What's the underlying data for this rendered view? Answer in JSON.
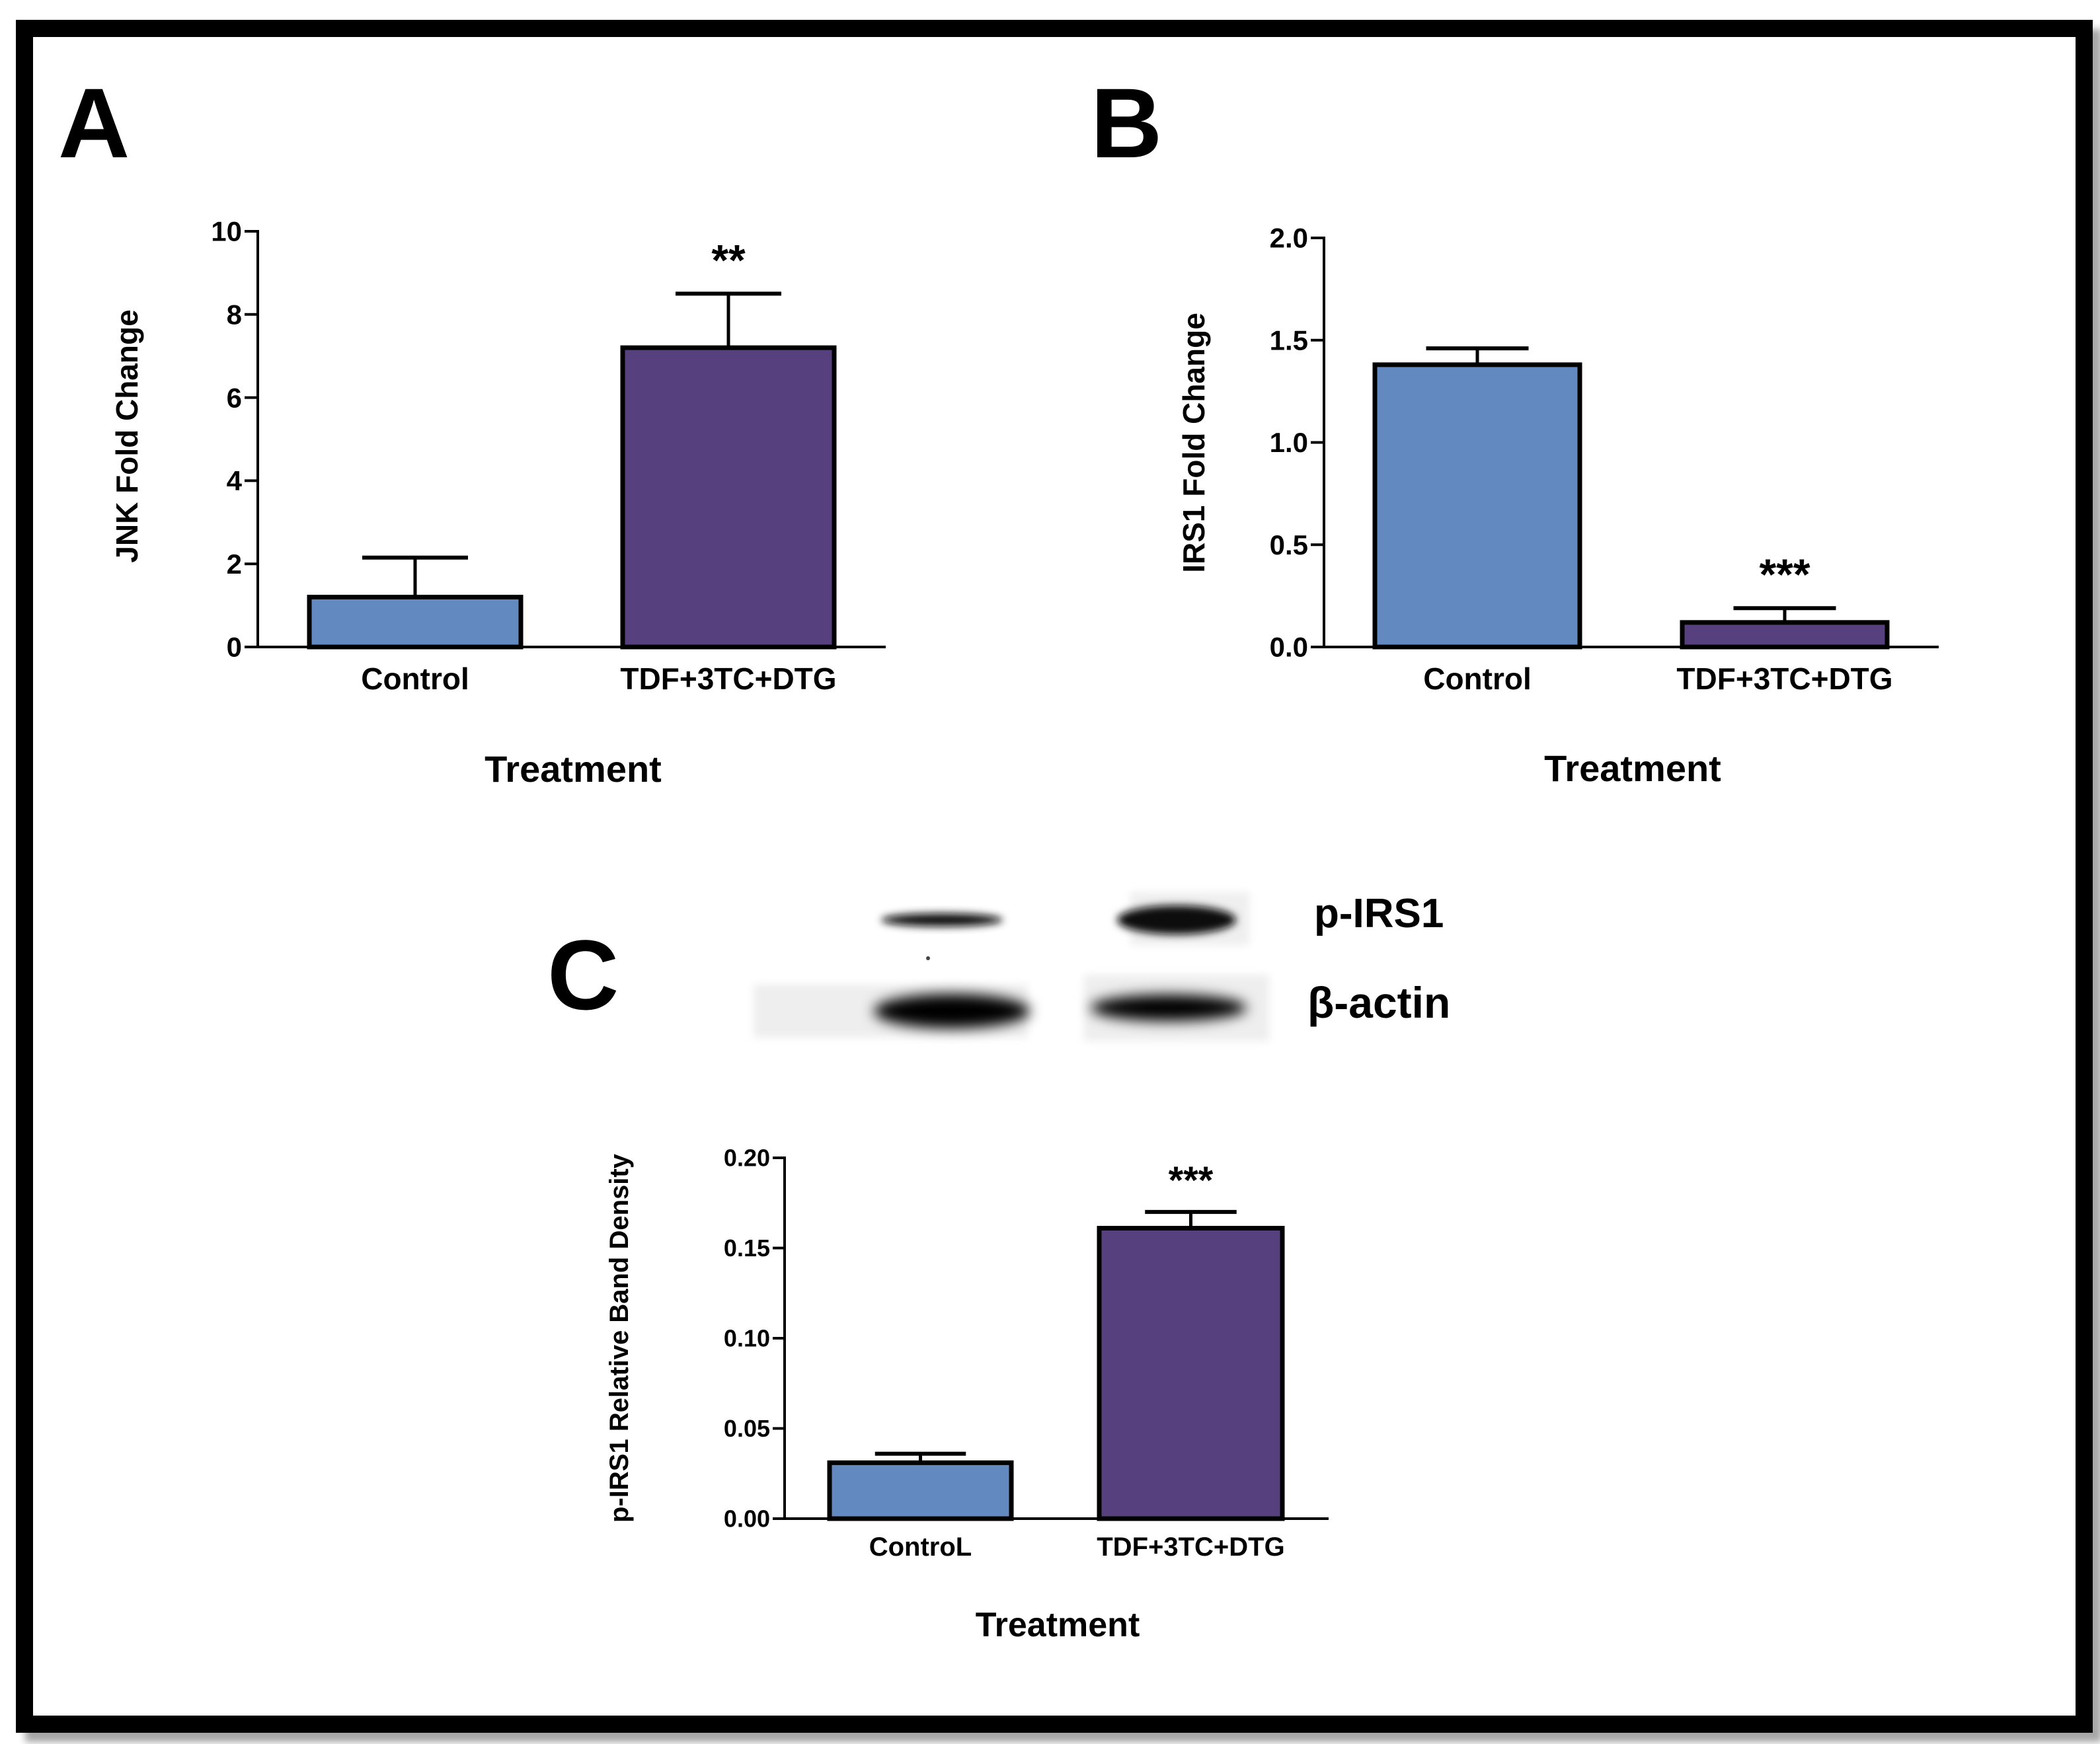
{
  "colors": {
    "control": "#6289C0",
    "treatment": "#57407E",
    "axis": "#000000"
  },
  "chart_data": [
    {
      "panel": "A",
      "type": "bar",
      "categories": [
        "Control",
        "TDF+3TC+DTG"
      ],
      "values": [
        1.2,
        7.2
      ],
      "errors": [
        0.95,
        1.3
      ],
      "significance": [
        "",
        "**"
      ],
      "xlabel": "Treatment",
      "ylabel": "JNK Fold Change",
      "ylim": [
        0,
        10
      ],
      "yticks": [
        "0",
        "2",
        "4",
        "6",
        "8",
        "10"
      ]
    },
    {
      "panel": "B",
      "type": "bar",
      "categories": [
        "Control",
        "TDF+3TC+DTG"
      ],
      "values": [
        1.38,
        0.12
      ],
      "errors": [
        0.08,
        0.07
      ],
      "significance": [
        "",
        "***"
      ],
      "xlabel": "Treatment",
      "ylabel": "IRS1 Fold Change",
      "ylim": [
        0,
        2.0
      ],
      "yticks": [
        "0.0",
        "0.5",
        "1.0",
        "1.5",
        "2.0"
      ]
    },
    {
      "panel": "C",
      "type": "bar",
      "categories": [
        "ControL",
        "TDF+3TC+DTG"
      ],
      "values": [
        0.031,
        0.161
      ],
      "errors": [
        0.005,
        0.009
      ],
      "significance": [
        "",
        "***"
      ],
      "xlabel": "Treatment",
      "ylabel": "p-IRS1 Relative Band Density",
      "ylim": [
        0,
        0.2
      ],
      "yticks": [
        "0.00",
        "0.05",
        "0.10",
        "0.15",
        "0.20"
      ]
    }
  ],
  "blot": {
    "labels": [
      "p-IRS1",
      "β-actin"
    ]
  }
}
